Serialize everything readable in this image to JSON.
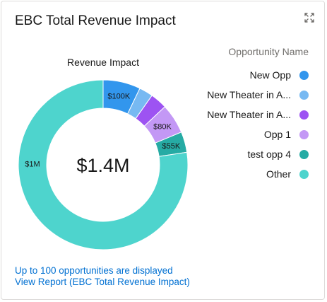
{
  "card": {
    "title": "EBC Total Revenue Impact",
    "expand_icon": "expand-icon"
  },
  "chart_data": {
    "type": "pie",
    "variant": "donut",
    "title": "Revenue Impact",
    "center_label": "$1.4M",
    "legend_title": "Opportunity Name",
    "legend_position": "right",
    "slices": [
      {
        "name": "New Opp",
        "value": 100000,
        "label": "$100K",
        "color": "#3296ed"
      },
      {
        "name": "New Theater in A...",
        "value": 37000,
        "label": "",
        "color": "#77b9f2"
      },
      {
        "name": "New Theater in A...",
        "value": 45000,
        "label": "",
        "color": "#9d53f2"
      },
      {
        "name": "Opp 1",
        "value": 80000,
        "label": "$80K",
        "color": "#c398f5"
      },
      {
        "name": "test opp 4",
        "value": 55000,
        "label": "$55K",
        "color": "#26aba4"
      },
      {
        "name": "Other",
        "value": 1083000,
        "label": "$1M",
        "color": "#4ed4cd"
      }
    ]
  },
  "footer": {
    "info": "Up to 100 opportunities are displayed",
    "report_link": "View Report (EBC Total Revenue Impact)"
  }
}
